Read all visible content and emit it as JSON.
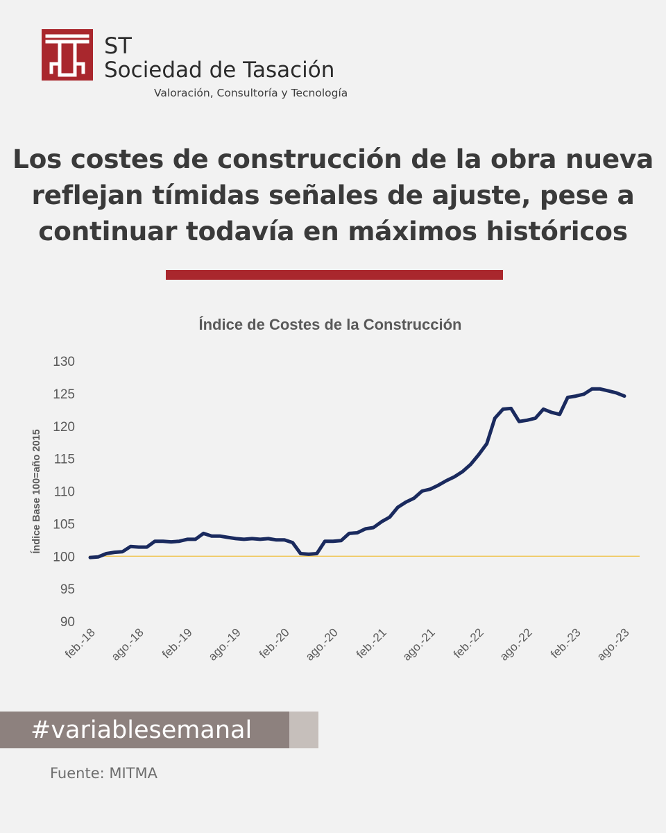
{
  "brand": {
    "short": "ST",
    "name": "Sociedad de Tasación",
    "tagline": "Valoración, Consultoría y Tecnología",
    "color": "#a9272d"
  },
  "headline": {
    "line1": "Los costes de construcción de la obra nueva",
    "line2": "reflejan tímidas señales de ajuste, pese a",
    "line3": "continuar todavía en máximos históricos"
  },
  "chart_data": {
    "type": "line",
    "title": "Índice de Costes de la Construcción",
    "ylabel": "Índice Base 100=año 2015",
    "xlabel": "",
    "ylim": [
      90,
      130
    ],
    "yticks": [
      90,
      95,
      100,
      105,
      110,
      115,
      120,
      125,
      130
    ],
    "xtick_labels": [
      "feb.-18",
      "ago.-18",
      "feb.-19",
      "ago.-19",
      "feb.-20",
      "ago.-20",
      "feb.-21",
      "ago.-21",
      "feb.-22",
      "ago.-22",
      "feb.-23",
      "ago.-23"
    ],
    "reference_line": {
      "y": 100,
      "color": "#f0c040"
    },
    "grid": false,
    "series": [
      {
        "color": "#1a2a5e",
        "x_start": "feb.-18",
        "frequency": "monthly",
        "values": [
          99.8,
          99.9,
          100.4,
          100.6,
          100.7,
          101.5,
          101.4,
          101.4,
          102.3,
          102.3,
          102.2,
          102.3,
          102.6,
          102.6,
          103.5,
          103.1,
          103.1,
          102.9,
          102.7,
          102.6,
          102.7,
          102.6,
          102.7,
          102.5,
          102.5,
          102.1,
          100.4,
          100.3,
          100.4,
          102.3,
          102.3,
          102.4,
          103.5,
          103.6,
          104.2,
          104.4,
          105.3,
          106.0,
          107.5,
          108.3,
          108.9,
          110.0,
          110.3,
          110.9,
          111.6,
          112.2,
          113.0,
          114.1,
          115.6,
          117.3,
          121.2,
          122.6,
          122.7,
          120.7,
          120.9,
          121.2,
          122.6,
          122.1,
          121.8,
          124.4,
          124.6,
          124.9,
          125.7,
          125.7,
          125.4,
          125.1,
          124.6
        ]
      }
    ]
  },
  "hashtag": "#variablesemanal",
  "source": "Fuente: MITMA"
}
